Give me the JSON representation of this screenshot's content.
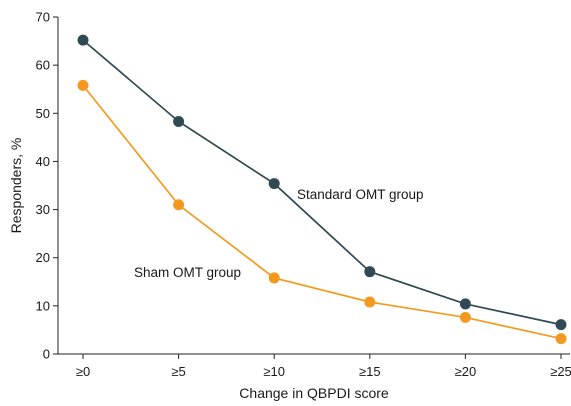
{
  "chart_data": {
    "type": "line",
    "categories": [
      "≥0",
      "≥5",
      "≥10",
      "≥15",
      "≥20",
      "≥25"
    ],
    "series": [
      {
        "name": "Standard OMT group",
        "color": "#2f4a55",
        "values": [
          65.2,
          48.3,
          35.4,
          17.1,
          10.4,
          6.1
        ]
      },
      {
        "name": "Sham OMT group",
        "color": "#f39a1e",
        "values": [
          55.8,
          31.0,
          15.8,
          10.8,
          7.6,
          3.2
        ]
      }
    ],
    "title": "",
    "xlabel": "Change in QBPDI score",
    "ylabel": "Responders, %",
    "ylim": [
      0,
      70
    ],
    "yticks": [
      0,
      10,
      20,
      30,
      40,
      50,
      60,
      70
    ],
    "grid": false,
    "legend": "inline labels"
  }
}
